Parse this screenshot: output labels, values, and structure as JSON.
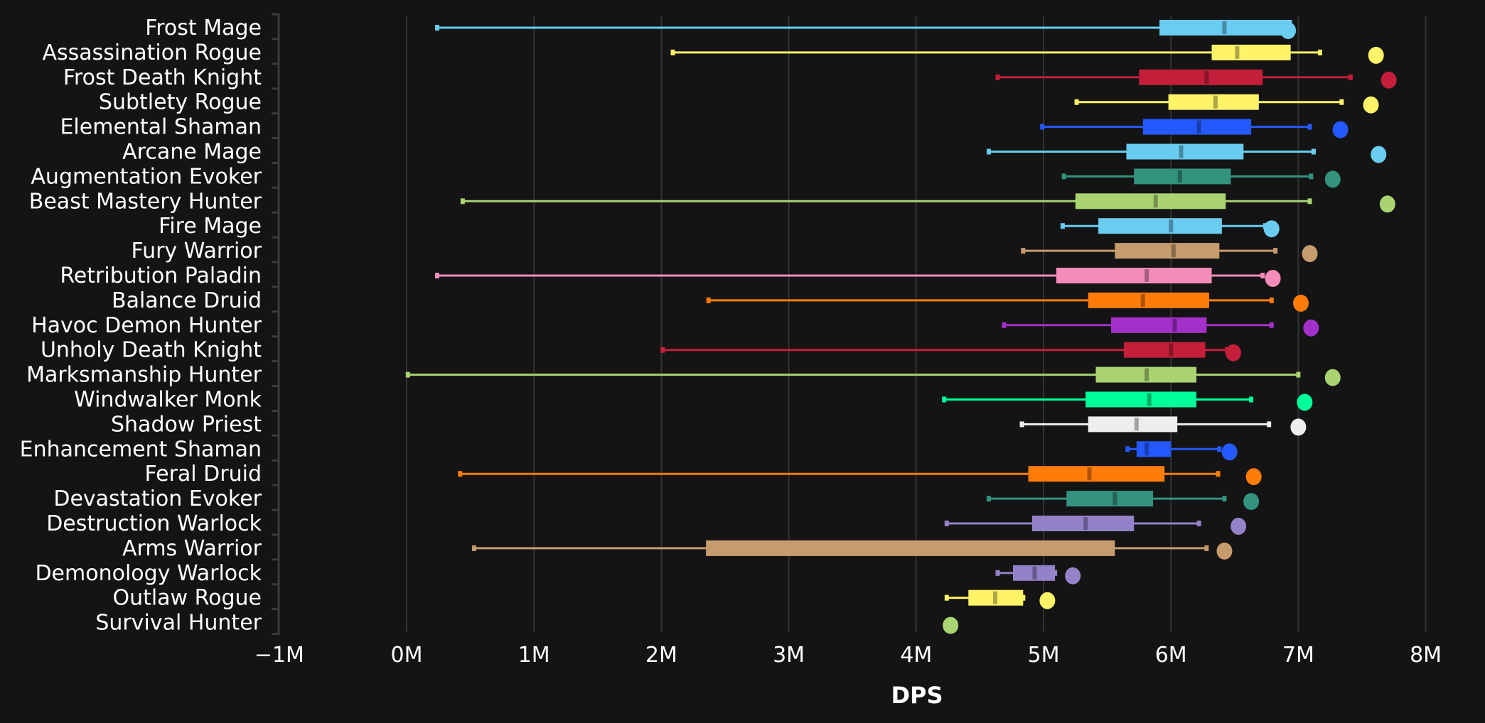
{
  "chart_data": {
    "type": "boxplot",
    "title": "",
    "xlabel": "DPS",
    "ylabel": "",
    "xlim": [
      -1,
      8
    ],
    "x_unit": "M",
    "xticks": [
      -1,
      0,
      1,
      2,
      3,
      4,
      5,
      6,
      7,
      8
    ],
    "xtick_labels": [
      "−1M",
      "0M",
      "1M",
      "2M",
      "3M",
      "4M",
      "5M",
      "6M",
      "7M",
      "8M"
    ],
    "grid": "vertical",
    "legend": "none",
    "series": [
      {
        "name": "Frost Mage",
        "color": "#69CCF0",
        "min": 0.24,
        "q1": 5.91,
        "median": 6.42,
        "q3": 6.95,
        "max": 6.95,
        "top": 6.92
      },
      {
        "name": "Assassination Rogue",
        "color": "#FFF468",
        "min": 2.09,
        "q1": 6.32,
        "median": 6.52,
        "q3": 6.94,
        "max": 7.17,
        "top": 7.61
      },
      {
        "name": "Frost Death Knight",
        "color": "#C41E3A",
        "min": 4.64,
        "q1": 5.75,
        "median": 6.28,
        "q3": 6.72,
        "max": 7.41,
        "top": 7.71
      },
      {
        "name": "Subtlety Rogue",
        "color": "#FFF468",
        "min": 5.26,
        "q1": 5.98,
        "median": 6.35,
        "q3": 6.69,
        "max": 7.34,
        "top": 7.57
      },
      {
        "name": "Elemental Shaman",
        "color": "#2459FF",
        "min": 4.99,
        "q1": 5.78,
        "median": 6.22,
        "q3": 6.63,
        "max": 7.09,
        "top": 7.33
      },
      {
        "name": "Arcane Mage",
        "color": "#69CCF0",
        "min": 4.57,
        "q1": 5.65,
        "median": 6.08,
        "q3": 6.57,
        "max": 7.12,
        "top": 7.63
      },
      {
        "name": "Augmentation Evoker",
        "color": "#33937F",
        "min": 5.16,
        "q1": 5.71,
        "median": 6.07,
        "q3": 6.47,
        "max": 7.1,
        "top": 7.27
      },
      {
        "name": "Beast Mastery Hunter",
        "color": "#AAD372",
        "min": 0.44,
        "q1": 5.25,
        "median": 5.88,
        "q3": 6.43,
        "max": 7.09,
        "top": 7.7
      },
      {
        "name": "Fire Mage",
        "color": "#69CCF0",
        "min": 5.15,
        "q1": 5.43,
        "median": 6.0,
        "q3": 6.4,
        "max": 6.74,
        "top": 6.79
      },
      {
        "name": "Fury Warrior",
        "color": "#C69B6D",
        "min": 4.84,
        "q1": 5.56,
        "median": 6.02,
        "q3": 6.38,
        "max": 6.82,
        "top": 7.09
      },
      {
        "name": "Retribution Paladin",
        "color": "#F48CBA",
        "min": 0.24,
        "q1": 5.1,
        "median": 5.81,
        "q3": 6.32,
        "max": 6.72,
        "top": 6.8
      },
      {
        "name": "Balance Druid",
        "color": "#FF7C0A",
        "min": 2.37,
        "q1": 5.35,
        "median": 5.78,
        "q3": 6.3,
        "max": 6.79,
        "top": 7.02
      },
      {
        "name": "Havoc Demon Hunter",
        "color": "#A330C9",
        "min": 4.69,
        "q1": 5.53,
        "median": 6.03,
        "q3": 6.28,
        "max": 6.79,
        "top": 7.1
      },
      {
        "name": "Unholy Death Knight",
        "color": "#C41E3A",
        "min": 2.01,
        "q1": 5.63,
        "median": 6.0,
        "q3": 6.27,
        "max": 6.44,
        "top": 6.49
      },
      {
        "name": "Marksmanship Hunter",
        "color": "#AAD372",
        "min": 0.01,
        "q1": 5.41,
        "median": 5.81,
        "q3": 6.2,
        "max": 7.0,
        "top": 7.27
      },
      {
        "name": "Windwalker Monk",
        "color": "#00FF98",
        "min": 4.22,
        "q1": 5.33,
        "median": 5.83,
        "q3": 6.2,
        "max": 6.63,
        "top": 7.05
      },
      {
        "name": "Shadow Priest",
        "color": "#EEEEEE",
        "min": 4.83,
        "q1": 5.35,
        "median": 5.73,
        "q3": 6.05,
        "max": 6.77,
        "top": 7.0
      },
      {
        "name": "Enhancement Shaman",
        "color": "#2459FF",
        "min": 5.66,
        "q1": 5.73,
        "median": 5.81,
        "q3": 6.0,
        "max": 6.38,
        "top": 6.46
      },
      {
        "name": "Feral Druid",
        "color": "#FF7C0A",
        "min": 0.42,
        "q1": 4.88,
        "median": 5.36,
        "q3": 5.95,
        "max": 6.37,
        "top": 6.65
      },
      {
        "name": "Devastation Evoker",
        "color": "#33937F",
        "min": 4.57,
        "q1": 5.18,
        "median": 5.56,
        "q3": 5.86,
        "max": 6.42,
        "top": 6.63
      },
      {
        "name": "Destruction Warlock",
        "color": "#9482C9",
        "min": 4.24,
        "q1": 4.91,
        "median": 5.33,
        "q3": 5.71,
        "max": 6.22,
        "top": 6.53
      },
      {
        "name": "Arms Warrior",
        "color": "#C69B6D",
        "min": 0.53,
        "q1": 2.35,
        "median": null,
        "q3": 5.56,
        "max": 6.28,
        "top": 6.42
      },
      {
        "name": "Demonology Warlock",
        "color": "#9482C9",
        "min": 4.64,
        "q1": 4.76,
        "median": 4.93,
        "q3": 5.09,
        "max": 5.09,
        "top": 5.23
      },
      {
        "name": "Outlaw Rogue",
        "color": "#FFF468",
        "min": 4.24,
        "q1": 4.41,
        "median": 4.62,
        "q3": 4.84,
        "max": 4.84,
        "top": 5.03
      },
      {
        "name": "Survival Hunter",
        "color": "#AAD372",
        "min": null,
        "q1": null,
        "median": null,
        "q3": null,
        "max": null,
        "top": 4.27
      }
    ]
  }
}
